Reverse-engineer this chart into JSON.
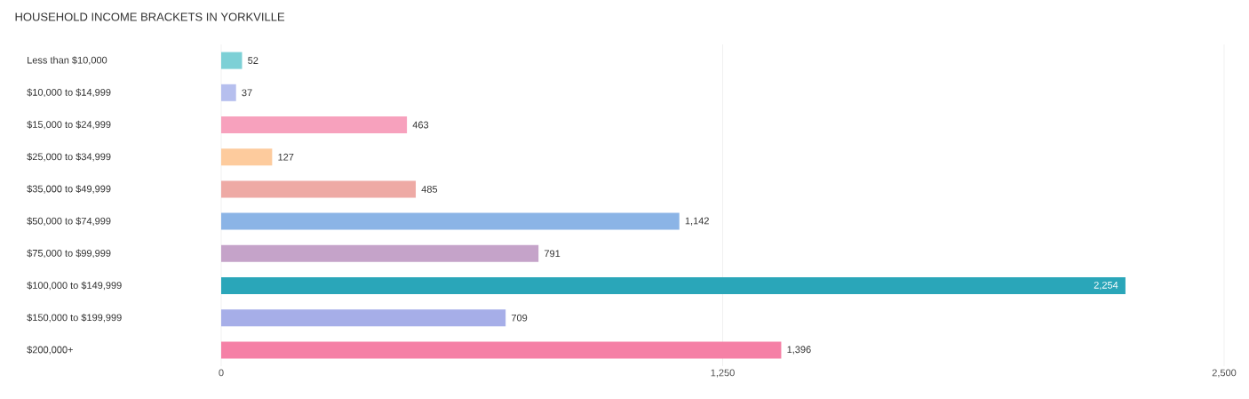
{
  "chart_data": {
    "type": "bar",
    "orientation": "horizontal",
    "title": "HOUSEHOLD INCOME BRACKETS IN YORKVILLE",
    "categories": [
      "Less than $10,000",
      "$10,000 to $14,999",
      "$15,000 to $24,999",
      "$25,000 to $34,999",
      "$35,000 to $49,999",
      "$50,000 to $74,999",
      "$75,000 to $99,999",
      "$100,000 to $149,999",
      "$150,000 to $199,999",
      "$200,000+"
    ],
    "values": [
      52,
      37,
      463,
      127,
      485,
      1142,
      791,
      2254,
      709,
      1396
    ],
    "value_labels": [
      "52",
      "37",
      "463",
      "127",
      "485",
      "1,142",
      "791",
      "2,254",
      "709",
      "1,396"
    ],
    "colors": [
      "#7dd0d6",
      "#b6bfee",
      "#f7a1bd",
      "#fdcb9d",
      "#eeaaa5",
      "#8bb4e6",
      "#c5a3c9",
      "#2aa6b9",
      "#a6aee8",
      "#f580a6"
    ],
    "xlim": [
      0,
      2500
    ],
    "xticks": [
      0,
      {
        "value": 1250,
        "label": "1,250"
      },
      {
        "value": 2500,
        "label": "2,500"
      }
    ],
    "grid": "x"
  }
}
